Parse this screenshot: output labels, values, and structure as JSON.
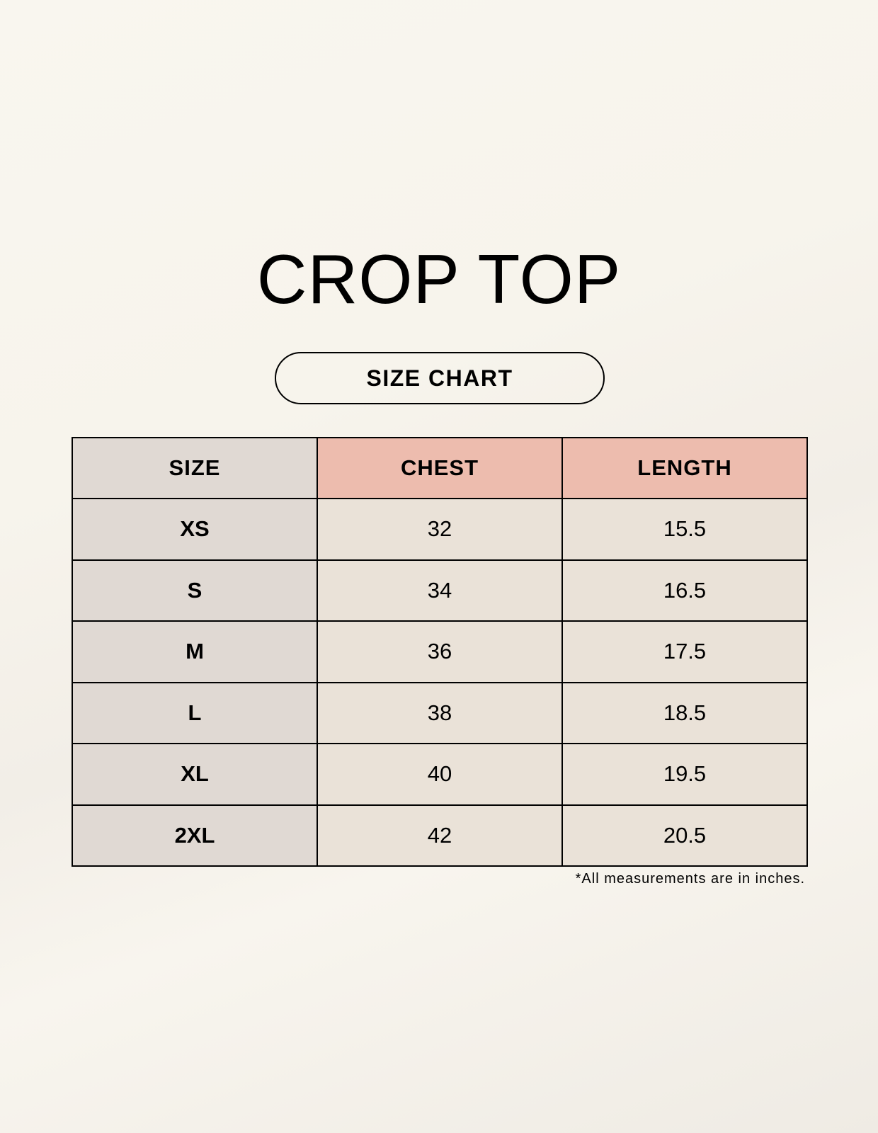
{
  "title": "CROP TOP",
  "subtitle": "SIZE CHART",
  "table": {
    "headers": [
      "SIZE",
      "CHEST",
      "LENGTH"
    ],
    "rows": [
      [
        "XS",
        "32",
        "15.5"
      ],
      [
        "S",
        "34",
        "16.5"
      ],
      [
        "M",
        "36",
        "17.5"
      ],
      [
        "L",
        "38",
        "18.5"
      ],
      [
        "XL",
        "40",
        "19.5"
      ],
      [
        "2XL",
        "42",
        "20.5"
      ]
    ]
  },
  "footnote": "*All measurements are in inches.",
  "colors": {
    "size_column": "#e0d9d3",
    "header_accent": "#edbcae",
    "cell": "#eae2d8"
  }
}
